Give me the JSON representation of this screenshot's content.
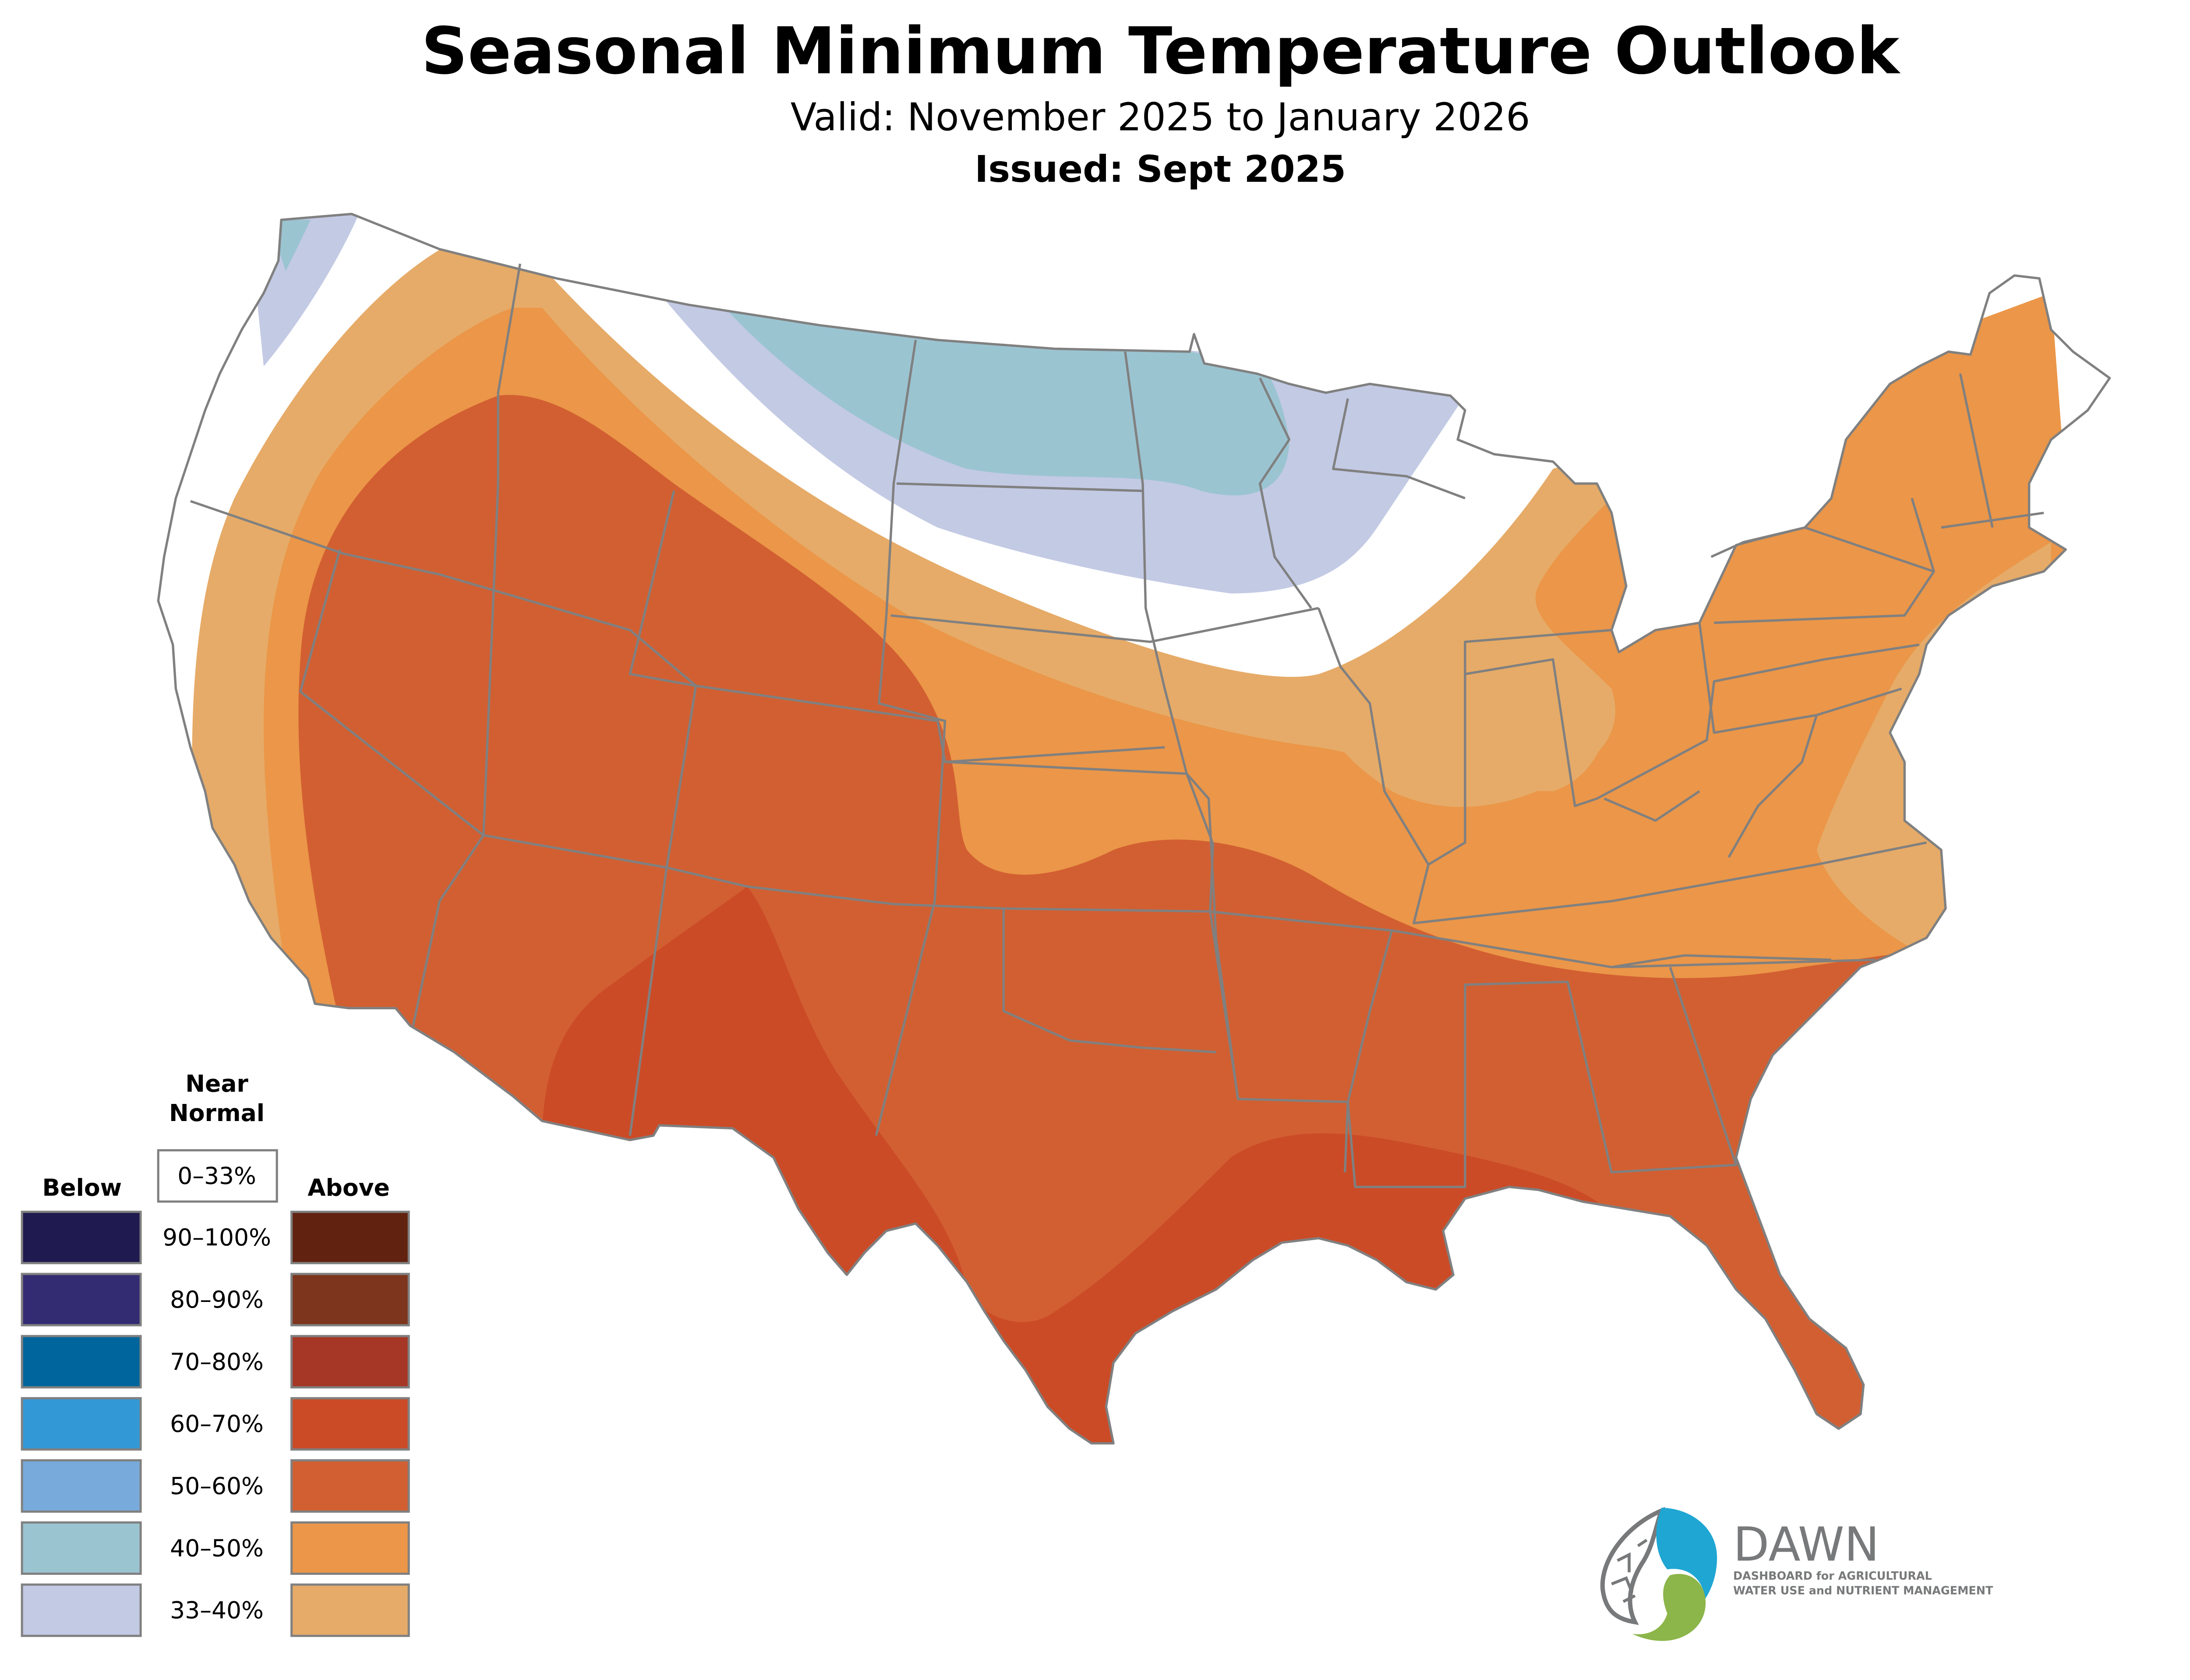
{
  "header": {
    "title": "Seasonal Minimum Temperature Outlook",
    "valid": "Valid: November 2025 to January 2026",
    "issued": "Issued: Sept 2025"
  },
  "legend": {
    "near_normal_line1": "Near",
    "near_normal_line2": "Normal",
    "near_normal_range": "0–33%",
    "below_label": "Below",
    "above_label": "Above",
    "rows": [
      {
        "range": "90–100%",
        "below_color": "#1f1a4f",
        "above_color": "#622210"
      },
      {
        "range": "80–90%",
        "below_color": "#332c73",
        "above_color": "#7e351d"
      },
      {
        "range": "70–80%",
        "below_color": "#00659c",
        "above_color": "#a63625"
      },
      {
        "range": "60–70%",
        "below_color": "#3398d6",
        "above_color": "#cb4b27"
      },
      {
        "range": "50–60%",
        "below_color": "#78aadb",
        "above_color": "#d25f32"
      },
      {
        "range": "40–50%",
        "below_color": "#9bc4d1",
        "above_color": "#eb9648"
      },
      {
        "range": "33–40%",
        "below_color": "#c3cae4",
        "above_color": "#e6ab68"
      }
    ]
  },
  "map": {
    "categories": [
      {
        "name": "above-33-40",
        "color": "#e6ab68"
      },
      {
        "name": "above-40-50",
        "color": "#eb9648"
      },
      {
        "name": "above-50-60",
        "color": "#d25f32"
      },
      {
        "name": "above-60-70",
        "color": "#cb4b27"
      },
      {
        "name": "below-33-40",
        "color": "#c3cae4"
      },
      {
        "name": "below-40-50",
        "color": "#9bc4d1"
      },
      {
        "name": "near-normal",
        "color": "#ffffff"
      }
    ],
    "border_color": "#808080"
  },
  "logo": {
    "name": "DAWN",
    "tagline_line1": "DASHBOARD for AGRICULTURAL",
    "tagline_line2": "WATER USE and NUTRIENT MANAGEMENT",
    "blue": "#1fa6d3",
    "green": "#8cb54a",
    "gray": "#77797a"
  }
}
